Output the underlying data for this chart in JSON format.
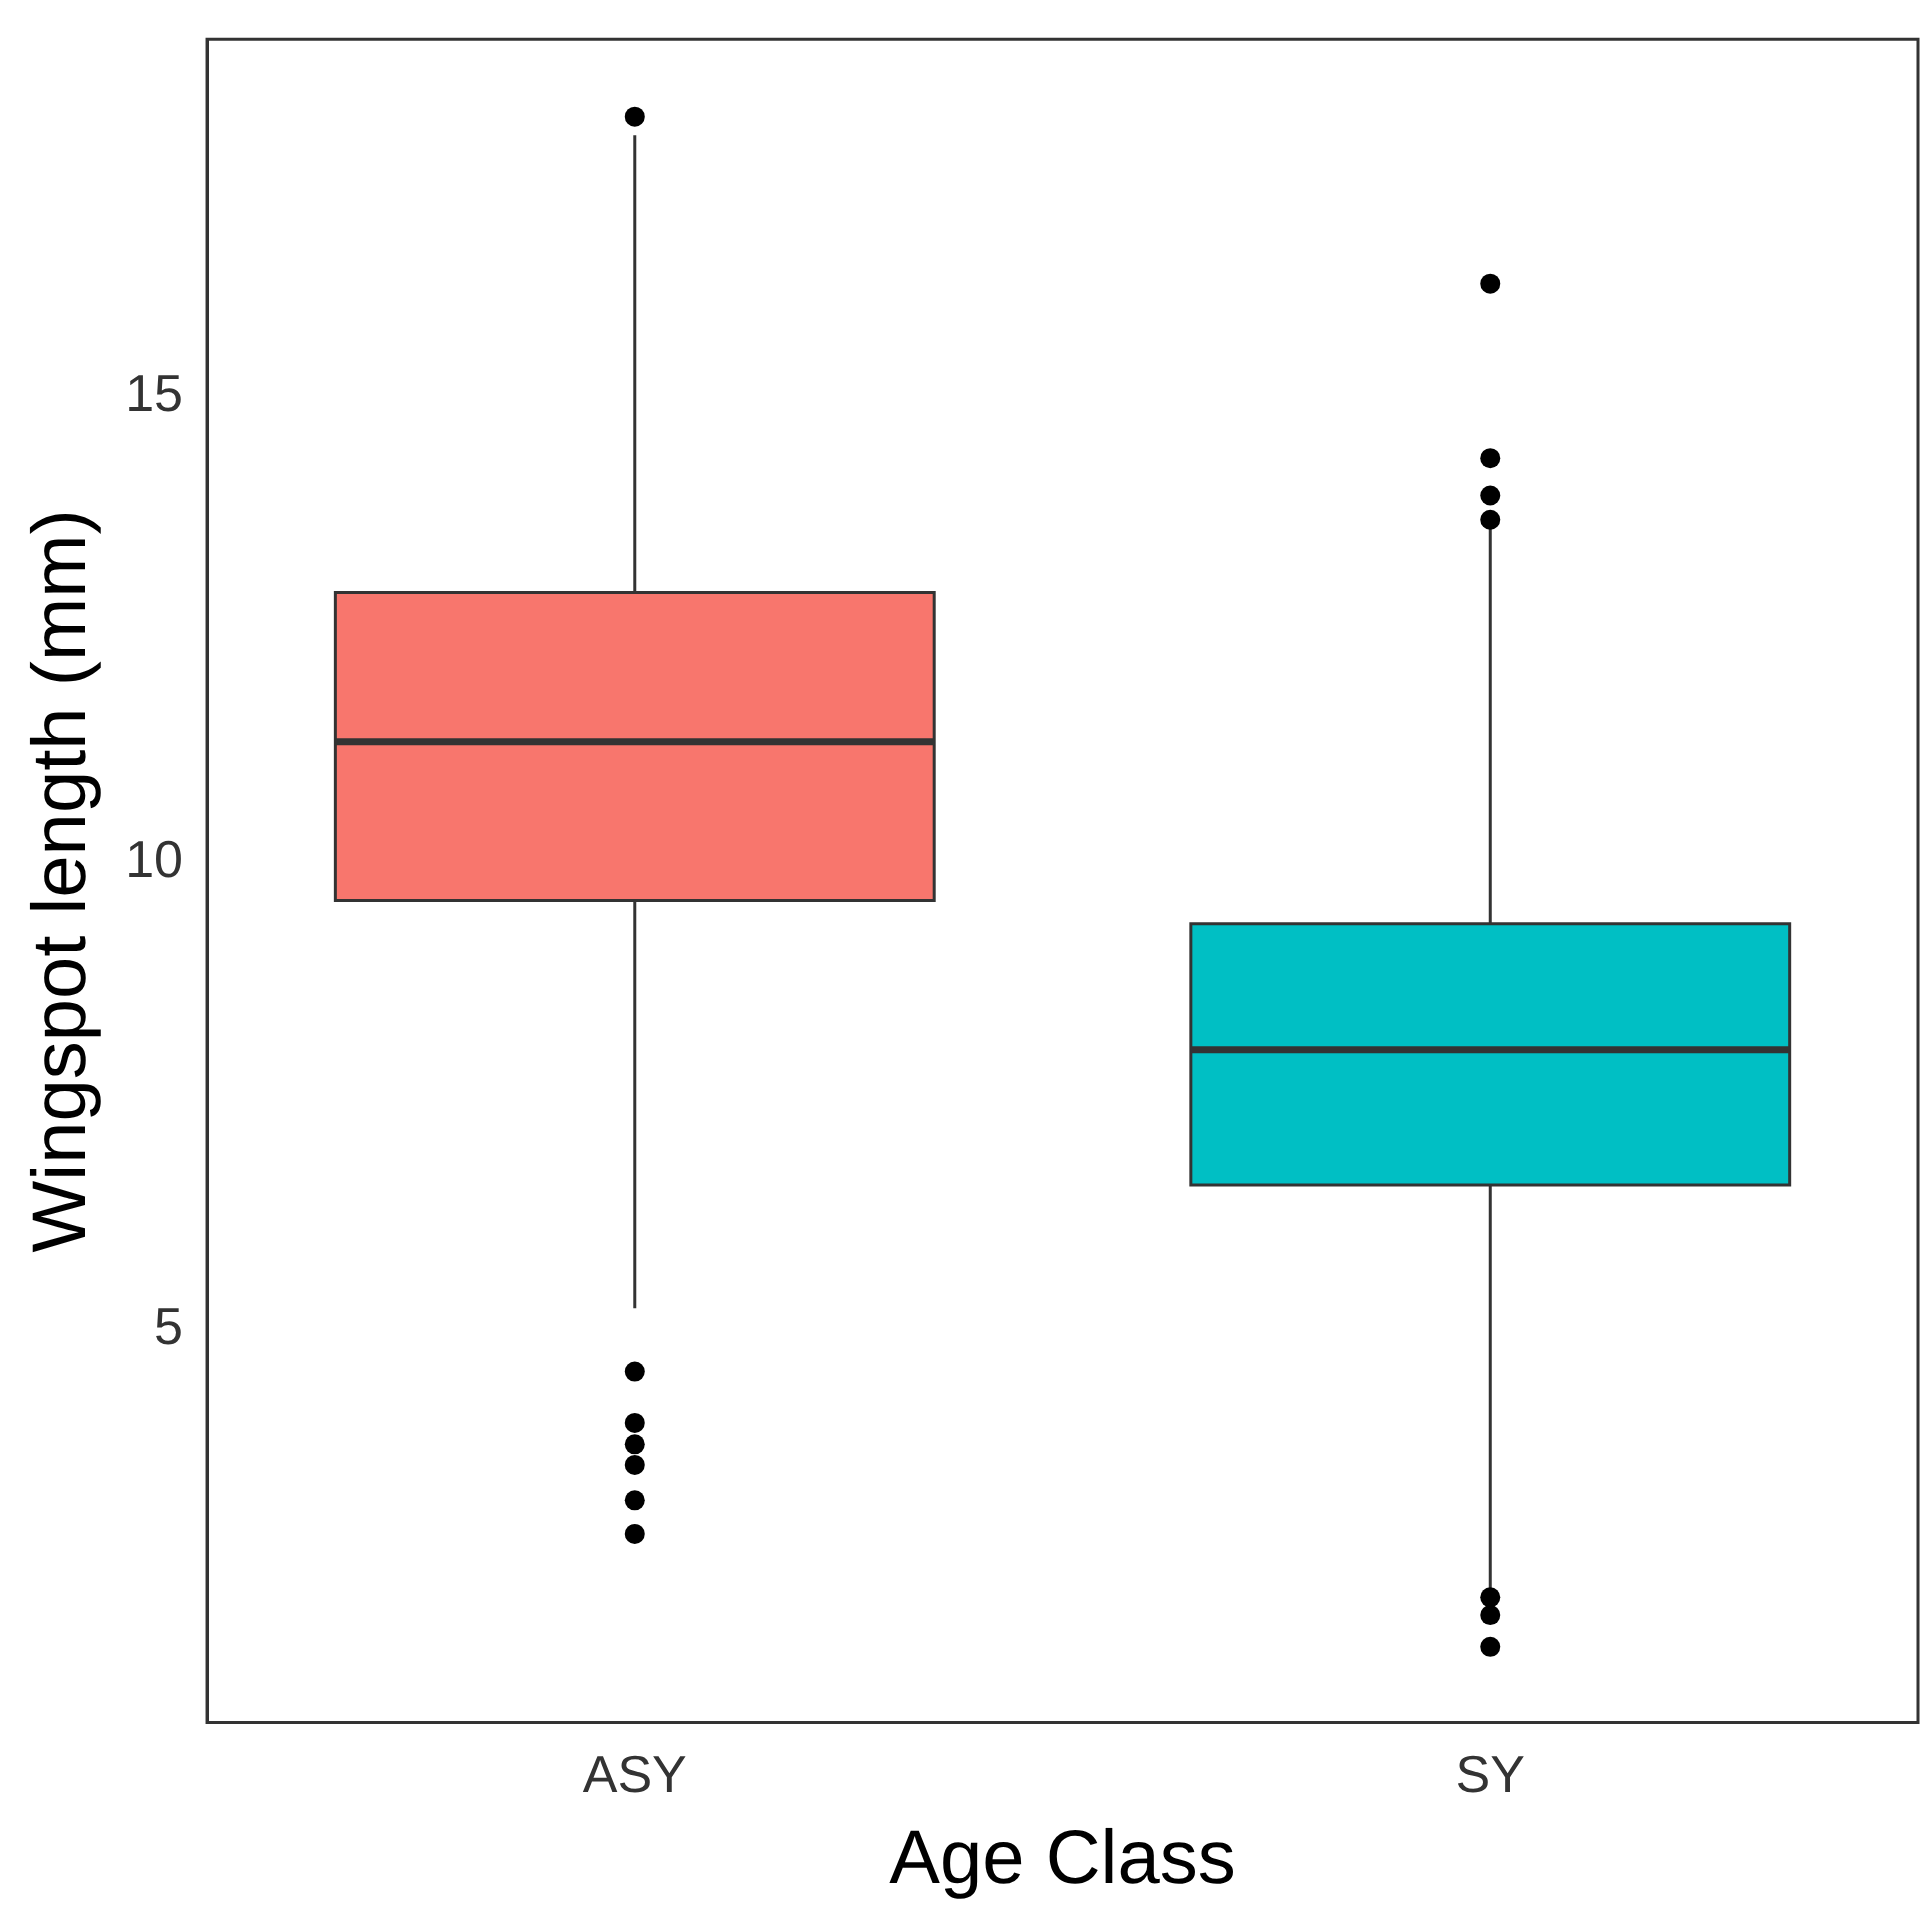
{
  "chart_data": {
    "type": "box",
    "xlabel": "Age Class",
    "ylabel": "Wingspot length (mm)",
    "categories": [
      "ASY",
      "SY"
    ],
    "colors": [
      "#f8766d",
      "#00bfc4"
    ],
    "boxes": [
      {
        "low": 5.23,
        "q1": 9.6,
        "median": 11.3,
        "q3": 12.9,
        "high": 17.8,
        "outliers": [
          18.0,
          4.55,
          4.0,
          3.77,
          3.55,
          3.17,
          2.81
        ]
      },
      {
        "low": 2.2,
        "q1": 6.55,
        "median": 8.0,
        "q3": 9.35,
        "high": 13.68,
        "outliers": [
          16.21,
          14.34,
          13.94,
          13.68,
          2.13,
          1.94,
          1.6
        ]
      }
    ],
    "marker": "circle",
    "ylim": [
      0.79,
      18.83
    ],
    "yticks": [
      5,
      10,
      15
    ],
    "grid": false,
    "legend": false
  }
}
